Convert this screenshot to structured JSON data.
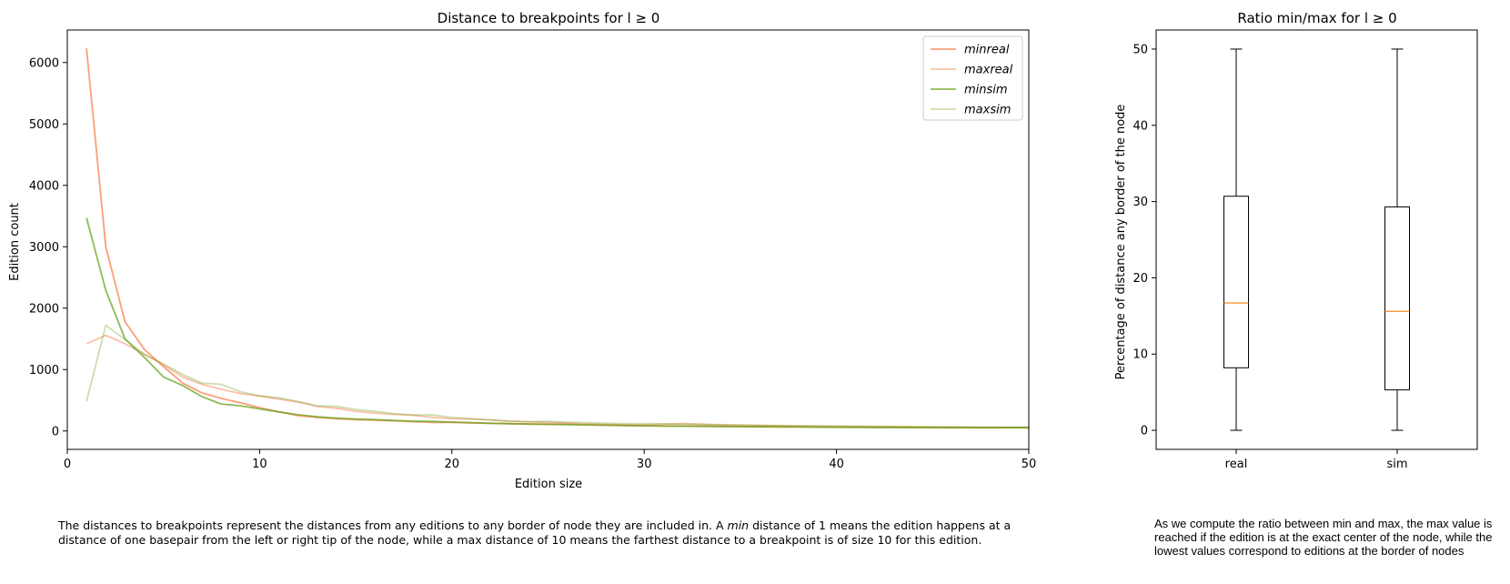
{
  "chart_data": [
    {
      "type": "line",
      "title": "Distance to breakpoints for l ≥ 0",
      "xlabel": "Edition size",
      "ylabel": "Edition count",
      "xlim": [
        0,
        50
      ],
      "ylim": [
        -300,
        6530
      ],
      "xticks": [
        "0",
        "10",
        "20",
        "30",
        "40",
        "50"
      ],
      "yticks": [
        "0",
        "1000",
        "2000",
        "3000",
        "4000",
        "5000",
        "6000"
      ],
      "grid": false,
      "legend_position": "top-right",
      "x": [
        1,
        2,
        3,
        4,
        5,
        6,
        7,
        8,
        9,
        10,
        11,
        12,
        13,
        14,
        15,
        16,
        17,
        18,
        19,
        20,
        21,
        22,
        23,
        24,
        25,
        26,
        27,
        28,
        29,
        30,
        31,
        32,
        33,
        34,
        35,
        36,
        37,
        38,
        39,
        40,
        41,
        42,
        43,
        44,
        45,
        46,
        47,
        48,
        49,
        50
      ],
      "series": [
        {
          "name": "minreal",
          "color": "#FC8D62",
          "opacity": 0.85,
          "values": [
            6230,
            3000,
            1780,
            1330,
            1050,
            780,
            620,
            530,
            460,
            380,
            310,
            250,
            220,
            200,
            185,
            175,
            165,
            150,
            140,
            140,
            130,
            125,
            120,
            115,
            110,
            110,
            100,
            95,
            90,
            85,
            80,
            80,
            78,
            75,
            72,
            70,
            68,
            68,
            66,
            65,
            64,
            62,
            60,
            60,
            58,
            57,
            56,
            55,
            55,
            55
          ]
        },
        {
          "name": "maxreal",
          "color": "#FC8D62",
          "opacity": 0.55,
          "values": [
            1420,
            1560,
            1420,
            1250,
            1080,
            880,
            760,
            680,
            610,
            570,
            520,
            470,
            400,
            370,
            320,
            290,
            270,
            255,
            220,
            200,
            195,
            180,
            160,
            150,
            140,
            130,
            115,
            105,
            100,
            100,
            110,
            120,
            110,
            100,
            95,
            90,
            85,
            80,
            78,
            75,
            72,
            70,
            68,
            65,
            62,
            60,
            58,
            58,
            57,
            56
          ]
        },
        {
          "name": "minsim",
          "color": "#66A61E",
          "opacity": 0.75,
          "values": [
            3470,
            2290,
            1500,
            1200,
            880,
            740,
            560,
            440,
            410,
            360,
            310,
            265,
            230,
            210,
            195,
            185,
            170,
            160,
            155,
            145,
            135,
            125,
            118,
            110,
            108,
            102,
            98,
            92,
            88,
            85,
            80,
            78,
            75,
            73,
            70,
            68,
            66,
            64,
            62,
            60,
            58,
            56,
            55,
            54,
            54,
            53,
            53,
            52,
            52,
            52
          ]
        },
        {
          "name": "maxsim",
          "color": "#66A61E",
          "opacity": 0.35,
          "values": [
            480,
            1720,
            1490,
            1250,
            1090,
            920,
            780,
            760,
            640,
            570,
            540,
            480,
            410,
            400,
            350,
            320,
            280,
            260,
            260,
            220,
            200,
            180,
            160,
            150,
            155,
            140,
            135,
            125,
            120,
            120,
            115,
            110,
            105,
            100,
            95,
            90,
            88,
            85,
            82,
            80,
            78,
            75,
            72,
            70,
            68,
            66,
            64,
            62,
            60,
            58
          ]
        }
      ]
    },
    {
      "type": "box",
      "title": "Ratio min/max for l ≥ 0",
      "ylabel": "Percentage of distance any border of the node",
      "ylim": [
        -2.5,
        52.5
      ],
      "yticks": [
        "0",
        "10",
        "20",
        "30",
        "40",
        "50"
      ],
      "categories": [
        "real",
        "sim"
      ],
      "boxes": [
        {
          "label": "real",
          "whisker_low": 0,
          "q1": 8.2,
          "median": 16.7,
          "q3": 30.7,
          "whisker_high": 50
        },
        {
          "label": "sim",
          "whisker_low": 0,
          "q1": 5.3,
          "median": 15.6,
          "q3": 29.3,
          "whisker_high": 50
        }
      ],
      "median_color": "#FF7F0E"
    }
  ],
  "captions": {
    "left_pre": "The distances to breakpoints represent the distances from any editions to any border of node they are included in. A ",
    "left_em": "min",
    "left_post": " distance of 1 means the edition happens at a distance of one basepair from the left or right tip of the node, while a max distance of 10 means the farthest distance to a breakpoint is of size 10 for this edition.",
    "right": "As we compute the ratio between min and max, the max value is reached if the edition is at the exact center of the node, while the lowest values correspond to editions at the border of nodes"
  }
}
